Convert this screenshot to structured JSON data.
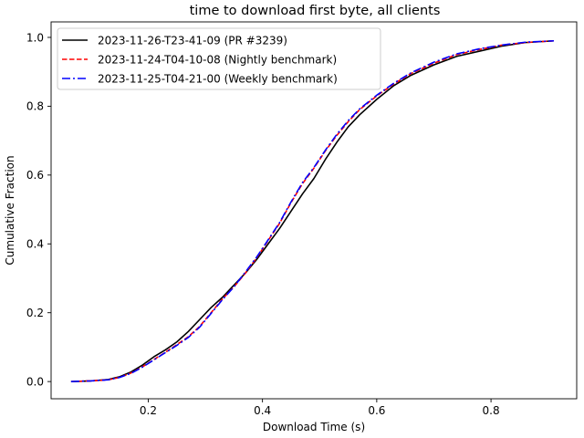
{
  "chart_data": {
    "type": "line",
    "title": "time to download first byte, all clients",
    "xlabel": "Download Time (s)",
    "ylabel": "Cumulative Fraction",
    "xlim": [
      0.03,
      0.95
    ],
    "ylim": [
      -0.05,
      1.045
    ],
    "xticks": [
      0.2,
      0.4,
      0.6,
      0.8
    ],
    "xtick_labels": [
      "0.2",
      "0.4",
      "0.6",
      "0.8"
    ],
    "yticks": [
      0.0,
      0.2,
      0.4,
      0.6,
      0.8,
      1.0
    ],
    "ytick_labels": [
      "0.0",
      "0.2",
      "0.4",
      "0.6",
      "0.8",
      "1.0"
    ],
    "grid": false,
    "legend_position": "top-left",
    "series": [
      {
        "name": "2023-11-26-T23-41-09 (PR #3239)",
        "color": "#000000",
        "style": "solid",
        "x": [
          0.065,
          0.1,
          0.13,
          0.15,
          0.17,
          0.19,
          0.21,
          0.23,
          0.25,
          0.27,
          0.29,
          0.31,
          0.33,
          0.35,
          0.37,
          0.39,
          0.41,
          0.43,
          0.45,
          0.47,
          0.49,
          0.51,
          0.53,
          0.55,
          0.57,
          0.6,
          0.63,
          0.66,
          0.7,
          0.74,
          0.78,
          0.82,
          0.86,
          0.91
        ],
        "y": [
          0.0,
          0.002,
          0.006,
          0.014,
          0.028,
          0.048,
          0.072,
          0.092,
          0.115,
          0.145,
          0.18,
          0.215,
          0.245,
          0.28,
          0.315,
          0.355,
          0.4,
          0.445,
          0.495,
          0.545,
          0.59,
          0.645,
          0.695,
          0.74,
          0.775,
          0.82,
          0.86,
          0.89,
          0.92,
          0.945,
          0.96,
          0.975,
          0.985,
          0.99
        ]
      },
      {
        "name": "2023-11-24-T04-10-08 (Nightly benchmark)",
        "color": "#ff0000",
        "style": "dashed",
        "x": [
          0.065,
          0.1,
          0.13,
          0.15,
          0.17,
          0.19,
          0.21,
          0.23,
          0.25,
          0.27,
          0.29,
          0.31,
          0.33,
          0.35,
          0.37,
          0.39,
          0.41,
          0.43,
          0.45,
          0.47,
          0.49,
          0.51,
          0.53,
          0.55,
          0.57,
          0.6,
          0.63,
          0.66,
          0.7,
          0.74,
          0.78,
          0.82,
          0.86,
          0.91
        ],
        "y": [
          0.0,
          0.002,
          0.005,
          0.012,
          0.025,
          0.043,
          0.064,
          0.085,
          0.107,
          0.13,
          0.16,
          0.2,
          0.24,
          0.275,
          0.315,
          0.36,
          0.41,
          0.46,
          0.52,
          0.575,
          0.62,
          0.67,
          0.715,
          0.755,
          0.79,
          0.83,
          0.865,
          0.895,
          0.925,
          0.95,
          0.965,
          0.978,
          0.985,
          0.99
        ]
      },
      {
        "name": "2023-11-25-T04-21-00 (Weekly benchmark)",
        "color": "#0000ff",
        "style": "dashdot",
        "x": [
          0.065,
          0.1,
          0.13,
          0.15,
          0.17,
          0.19,
          0.21,
          0.23,
          0.25,
          0.27,
          0.29,
          0.31,
          0.33,
          0.35,
          0.37,
          0.39,
          0.41,
          0.43,
          0.45,
          0.47,
          0.49,
          0.51,
          0.53,
          0.55,
          0.57,
          0.6,
          0.63,
          0.66,
          0.7,
          0.74,
          0.78,
          0.82,
          0.86,
          0.91
        ],
        "y": [
          0.0,
          0.002,
          0.005,
          0.012,
          0.024,
          0.042,
          0.063,
          0.084,
          0.105,
          0.128,
          0.158,
          0.198,
          0.238,
          0.275,
          0.318,
          0.362,
          0.412,
          0.462,
          0.522,
          0.578,
          0.622,
          0.672,
          0.718,
          0.758,
          0.792,
          0.832,
          0.867,
          0.897,
          0.928,
          0.952,
          0.967,
          0.978,
          0.986,
          0.99
        ]
      }
    ]
  }
}
